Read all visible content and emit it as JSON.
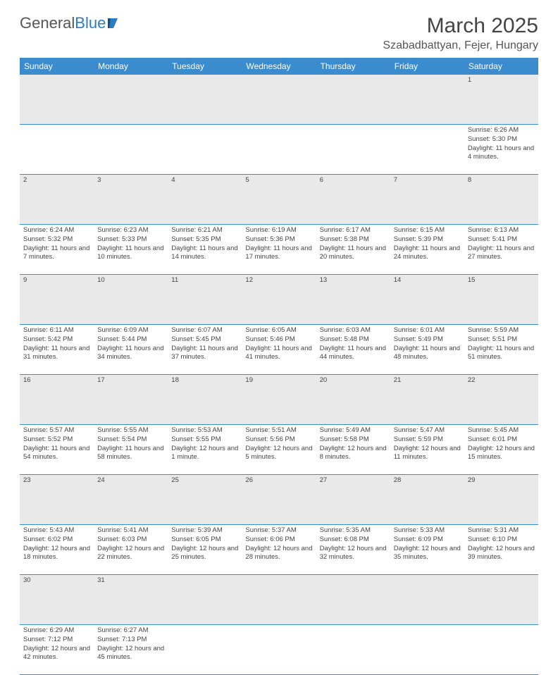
{
  "logo": {
    "text1": "General",
    "text2": "Blue"
  },
  "title": "March 2025",
  "location": "Szabadbattyan, Fejer, Hungary",
  "colors": {
    "header_bg": "#3b8bcf",
    "header_text": "#ffffff",
    "daynum_bg": "#e9e9e9",
    "cell_border": "#3b8bcf",
    "body_text": "#444444"
  },
  "day_headers": [
    "Sunday",
    "Monday",
    "Tuesday",
    "Wednesday",
    "Thursday",
    "Friday",
    "Saturday"
  ],
  "weeks": [
    [
      null,
      null,
      null,
      null,
      null,
      null,
      {
        "n": "1",
        "sr": "6:26 AM",
        "ss": "5:30 PM",
        "dl": "11 hours and 4 minutes."
      }
    ],
    [
      {
        "n": "2",
        "sr": "6:24 AM",
        "ss": "5:32 PM",
        "dl": "11 hours and 7 minutes."
      },
      {
        "n": "3",
        "sr": "6:23 AM",
        "ss": "5:33 PM",
        "dl": "11 hours and 10 minutes."
      },
      {
        "n": "4",
        "sr": "6:21 AM",
        "ss": "5:35 PM",
        "dl": "11 hours and 14 minutes."
      },
      {
        "n": "5",
        "sr": "6:19 AM",
        "ss": "5:36 PM",
        "dl": "11 hours and 17 minutes."
      },
      {
        "n": "6",
        "sr": "6:17 AM",
        "ss": "5:38 PM",
        "dl": "11 hours and 20 minutes."
      },
      {
        "n": "7",
        "sr": "6:15 AM",
        "ss": "5:39 PM",
        "dl": "11 hours and 24 minutes."
      },
      {
        "n": "8",
        "sr": "6:13 AM",
        "ss": "5:41 PM",
        "dl": "11 hours and 27 minutes."
      }
    ],
    [
      {
        "n": "9",
        "sr": "6:11 AM",
        "ss": "5:42 PM",
        "dl": "11 hours and 31 minutes."
      },
      {
        "n": "10",
        "sr": "6:09 AM",
        "ss": "5:44 PM",
        "dl": "11 hours and 34 minutes."
      },
      {
        "n": "11",
        "sr": "6:07 AM",
        "ss": "5:45 PM",
        "dl": "11 hours and 37 minutes."
      },
      {
        "n": "12",
        "sr": "6:05 AM",
        "ss": "5:46 PM",
        "dl": "11 hours and 41 minutes."
      },
      {
        "n": "13",
        "sr": "6:03 AM",
        "ss": "5:48 PM",
        "dl": "11 hours and 44 minutes."
      },
      {
        "n": "14",
        "sr": "6:01 AM",
        "ss": "5:49 PM",
        "dl": "11 hours and 48 minutes."
      },
      {
        "n": "15",
        "sr": "5:59 AM",
        "ss": "5:51 PM",
        "dl": "11 hours and 51 minutes."
      }
    ],
    [
      {
        "n": "16",
        "sr": "5:57 AM",
        "ss": "5:52 PM",
        "dl": "11 hours and 54 minutes."
      },
      {
        "n": "17",
        "sr": "5:55 AM",
        "ss": "5:54 PM",
        "dl": "11 hours and 58 minutes."
      },
      {
        "n": "18",
        "sr": "5:53 AM",
        "ss": "5:55 PM",
        "dl": "12 hours and 1 minute."
      },
      {
        "n": "19",
        "sr": "5:51 AM",
        "ss": "5:56 PM",
        "dl": "12 hours and 5 minutes."
      },
      {
        "n": "20",
        "sr": "5:49 AM",
        "ss": "5:58 PM",
        "dl": "12 hours and 8 minutes."
      },
      {
        "n": "21",
        "sr": "5:47 AM",
        "ss": "5:59 PM",
        "dl": "12 hours and 11 minutes."
      },
      {
        "n": "22",
        "sr": "5:45 AM",
        "ss": "6:01 PM",
        "dl": "12 hours and 15 minutes."
      }
    ],
    [
      {
        "n": "23",
        "sr": "5:43 AM",
        "ss": "6:02 PM",
        "dl": "12 hours and 18 minutes."
      },
      {
        "n": "24",
        "sr": "5:41 AM",
        "ss": "6:03 PM",
        "dl": "12 hours and 22 minutes."
      },
      {
        "n": "25",
        "sr": "5:39 AM",
        "ss": "6:05 PM",
        "dl": "12 hours and 25 minutes."
      },
      {
        "n": "26",
        "sr": "5:37 AM",
        "ss": "6:06 PM",
        "dl": "12 hours and 28 minutes."
      },
      {
        "n": "27",
        "sr": "5:35 AM",
        "ss": "6:08 PM",
        "dl": "12 hours and 32 minutes."
      },
      {
        "n": "28",
        "sr": "5:33 AM",
        "ss": "6:09 PM",
        "dl": "12 hours and 35 minutes."
      },
      {
        "n": "29",
        "sr": "5:31 AM",
        "ss": "6:10 PM",
        "dl": "12 hours and 39 minutes."
      }
    ],
    [
      {
        "n": "30",
        "sr": "6:29 AM",
        "ss": "7:12 PM",
        "dl": "12 hours and 42 minutes."
      },
      {
        "n": "31",
        "sr": "6:27 AM",
        "ss": "7:13 PM",
        "dl": "12 hours and 45 minutes."
      },
      null,
      null,
      null,
      null,
      null
    ]
  ],
  "labels": {
    "sunrise": "Sunrise:",
    "sunset": "Sunset:",
    "daylight": "Daylight:"
  }
}
